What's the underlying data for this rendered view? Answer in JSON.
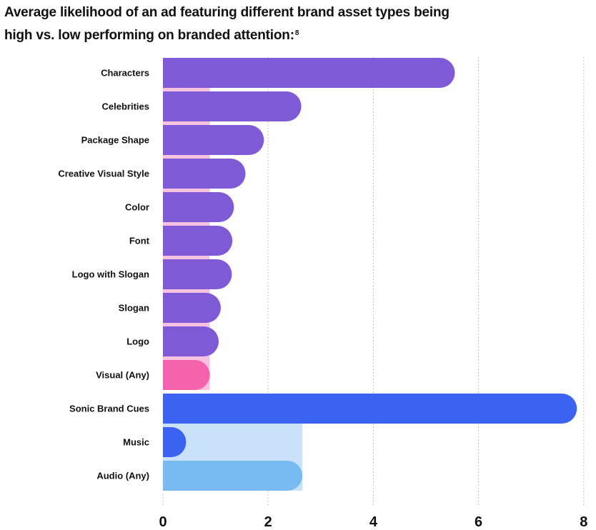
{
  "title": {
    "text": "Average likelihood of an ad featuring different brand asset types being high vs. low performing on branded attention:",
    "footnote": "8"
  },
  "chart_data": {
    "type": "bar",
    "orientation": "horizontal",
    "title": "Average likelihood of an ad featuring different brand asset types being high vs. low performing on branded attention:",
    "xlabel": "",
    "ylabel": "",
    "xlim": [
      0,
      8
    ],
    "xticks": [
      "0",
      "2",
      "4",
      "6",
      "8"
    ],
    "grid": "vertical dotted",
    "categories": [
      "Characters",
      "Celebrities",
      "Package Shape",
      "Creative Visual Style",
      "Color",
      "Font",
      "Logo with Slogan",
      "Slogan",
      "Logo",
      "Visual (Any)",
      "Sonic Brand Cues",
      "Music",
      "Audio (Any)"
    ],
    "values": [
      5.55,
      2.63,
      1.92,
      1.57,
      1.35,
      1.32,
      1.31,
      1.1,
      1.06,
      0.89,
      7.87,
      0.44,
      2.65
    ],
    "groups": [
      {
        "members": [
          "Characters",
          "Celebrities",
          "Package Shape",
          "Creative Visual Style",
          "Color",
          "Font",
          "Logo with Slogan",
          "Slogan",
          "Logo",
          "Visual (Any)"
        ],
        "reference": "Visual (Any)",
        "reference_value": 0.89,
        "bar_color": "#7f5ad6",
        "reference_color": "#f462ad",
        "band_color": "#f7c2df"
      },
      {
        "members": [
          "Sonic Brand Cues",
          "Music",
          "Audio (Any)"
        ],
        "reference": "Audio (Any)",
        "reference_value": 2.65,
        "bar_color": "#3b62f0",
        "reference_color": "#78baf2",
        "band_color": "#c9e1f9"
      }
    ]
  }
}
